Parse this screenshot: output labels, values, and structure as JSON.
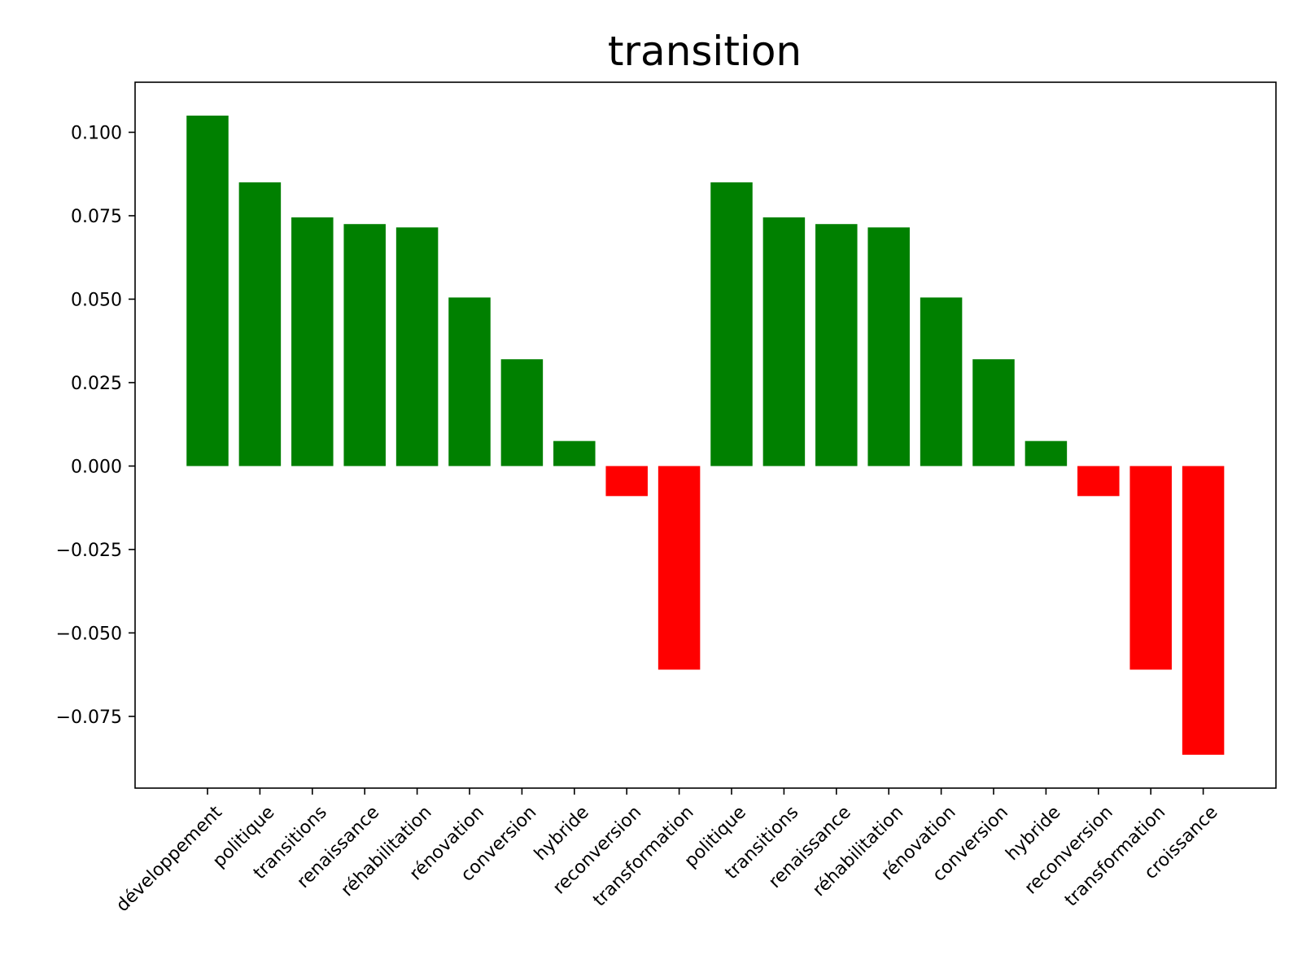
{
  "chart_data": {
    "type": "bar",
    "title": "transition",
    "xlabel": "",
    "ylabel": "",
    "categories": [
      "développement",
      "politique",
      "transitions",
      "renaissance",
      "réhabilitation",
      "rénovation",
      "conversion",
      "hybride",
      "reconversion",
      "transformation",
      "politique",
      "transitions",
      "renaissance",
      "réhabilitation",
      "rénovation",
      "conversion",
      "hybride",
      "reconversion",
      "transformation",
      "croissance"
    ],
    "values": [
      0.105,
      0.085,
      0.0745,
      0.0725,
      0.0715,
      0.0505,
      0.032,
      0.0075,
      -0.009,
      -0.061,
      0.085,
      0.0745,
      0.0725,
      0.0715,
      0.0505,
      0.032,
      0.0075,
      -0.009,
      -0.061,
      -0.0865
    ],
    "ylim": [
      -0.0965,
      0.115
    ],
    "yticks": [
      0.1,
      0.075,
      0.05,
      0.025,
      0.0,
      -0.025,
      -0.05,
      -0.075
    ],
    "ytick_labels": [
      "0.100",
      "0.075",
      "0.050",
      "0.025",
      "0.000",
      "−0.025",
      "−0.050",
      "−0.075"
    ],
    "positive_color": "#008000",
    "negative_color": "#ff0000",
    "grid": false,
    "legend": "none"
  }
}
